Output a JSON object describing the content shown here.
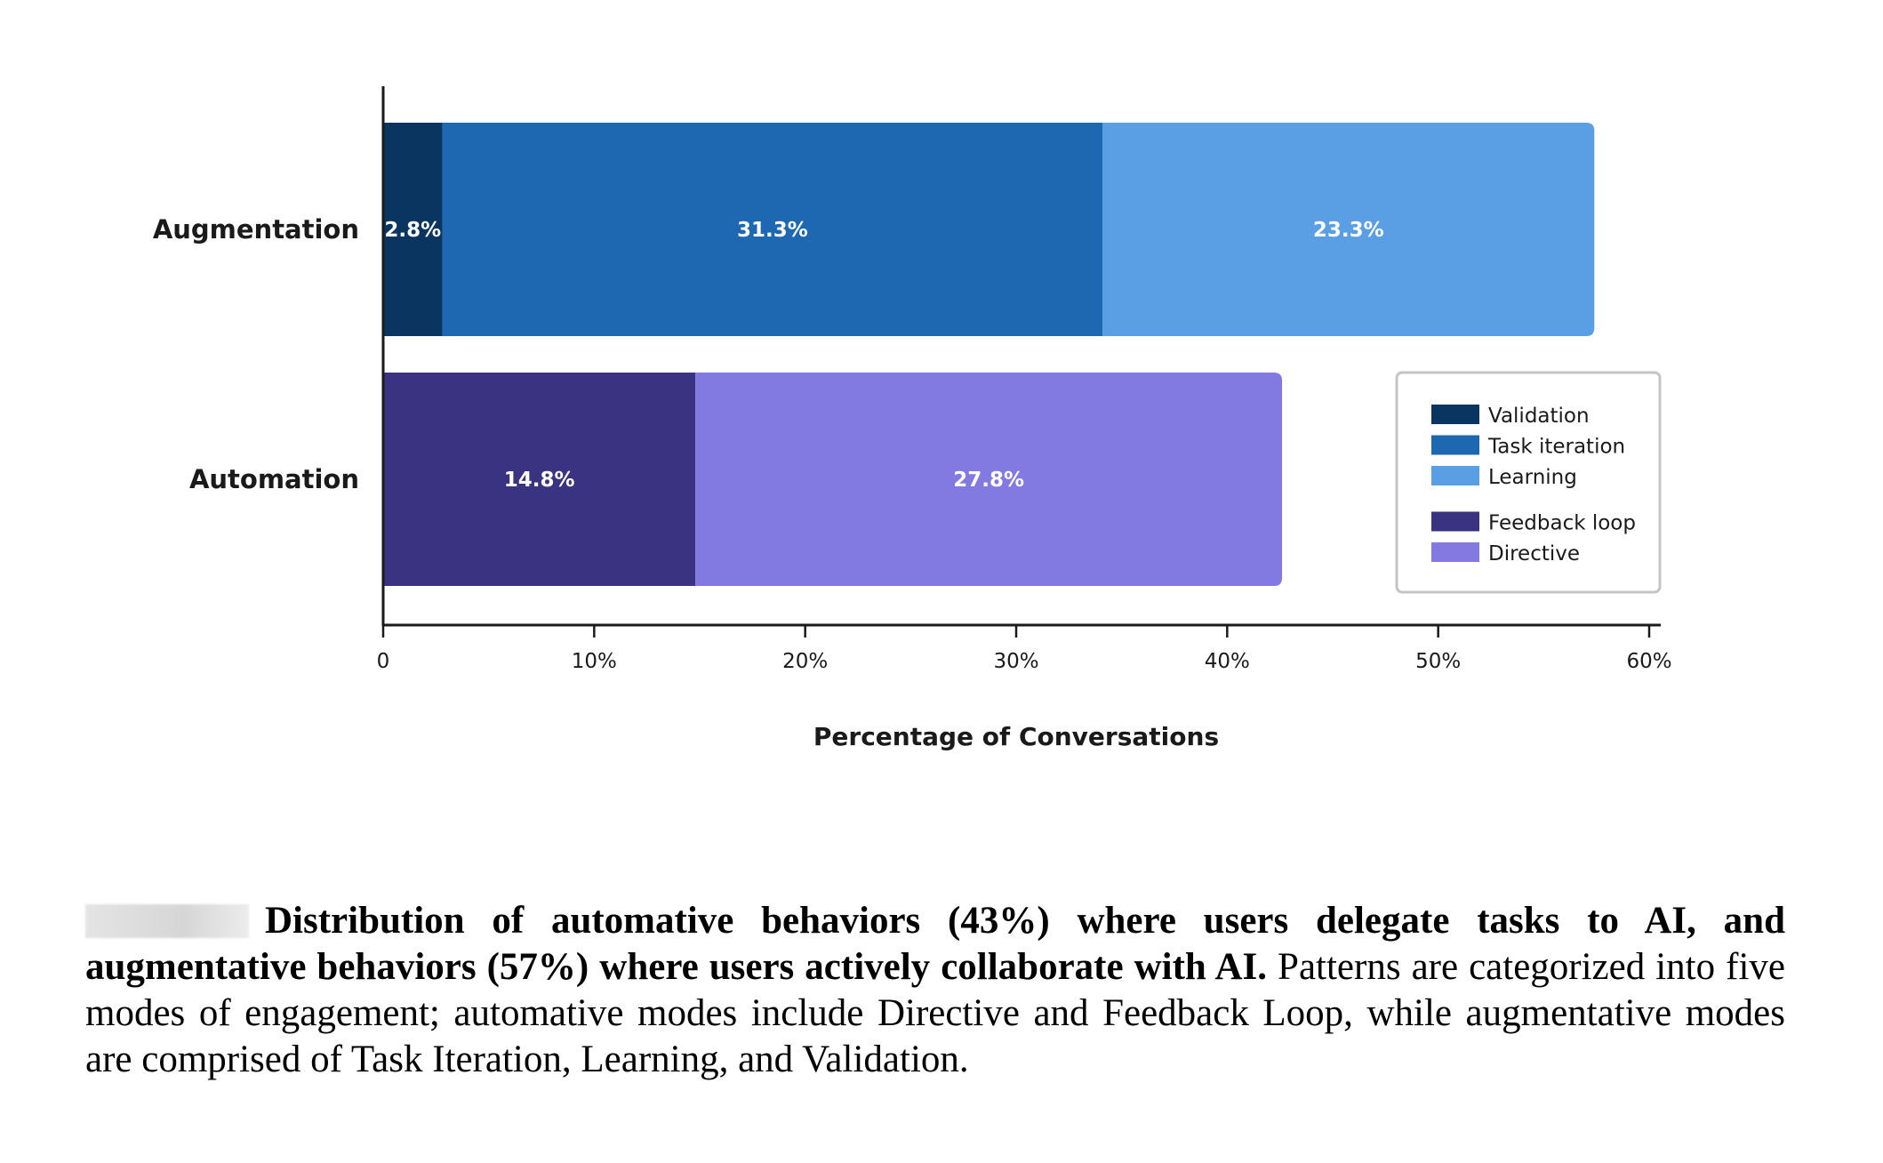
{
  "chart_data": {
    "type": "bar",
    "orientation": "horizontal",
    "stacked": true,
    "categories": [
      "Augmentation",
      "Automation"
    ],
    "series": [
      {
        "name": "Validation",
        "category": "Augmentation",
        "value": 2.8,
        "label": "2.8%",
        "color": "#0b3561"
      },
      {
        "name": "Task iteration",
        "category": "Augmentation",
        "value": 31.3,
        "label": "31.3%",
        "color": "#1e68b2"
      },
      {
        "name": "Learning",
        "category": "Augmentation",
        "value": 23.3,
        "label": "23.3%",
        "color": "#5a9ee3"
      },
      {
        "name": "Feedback loop",
        "category": "Automation",
        "value": 14.8,
        "label": "14.8%",
        "color": "#3a3381"
      },
      {
        "name": "Directive",
        "category": "Automation",
        "value": 27.8,
        "label": "27.8%",
        "color": "#827ae0"
      }
    ],
    "xlabel": "Percentage of Conversations",
    "ylabel": "",
    "xlim": [
      0,
      60
    ],
    "xticks": [
      0,
      10,
      20,
      30,
      40,
      50,
      60
    ],
    "xtick_labels": [
      "0",
      "10%",
      "20%",
      "30%",
      "40%",
      "50%",
      "60%"
    ],
    "grid": false,
    "legend": {
      "placement": "lower-right",
      "groups": [
        [
          "Validation",
          "Task iteration",
          "Learning"
        ],
        [
          "Feedback loop",
          "Directive"
        ]
      ]
    }
  },
  "caption": {
    "bold": "Distribution of automative behaviors (43%) where users delegate tasks to AI, and augmentative behaviors (57%) where users actively collaborate with AI.",
    "text": " Patterns are categorized into five modes of engagement; automative modes include Directive and Feedback Loop, while augmentative modes are comprised of Task Iteration, Learning, and Validation."
  }
}
